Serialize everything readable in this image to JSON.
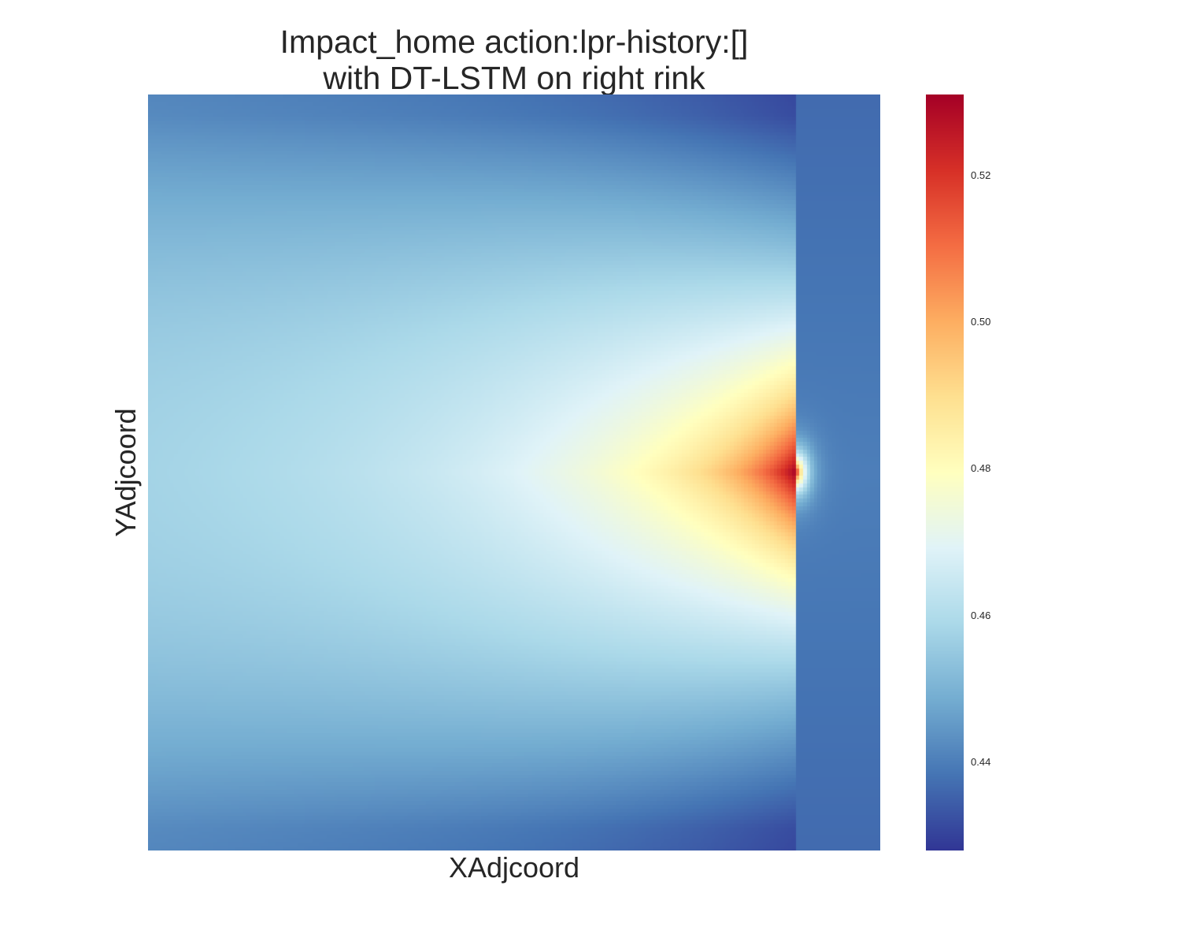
{
  "chart_data": {
    "type": "heatmap",
    "title": [
      "Impact_home action:lpr-history:[]",
      "with DT-LSTM on right rink"
    ],
    "xlabel": "XAdjcoord",
    "ylabel": "YAdjcoord",
    "colormap": "RdYlBu_r",
    "colormap_stops": [
      "#313695",
      "#4575b4",
      "#74add1",
      "#abd9e9",
      "#e0f3f8",
      "#ffffbf",
      "#fee090",
      "#fdae61",
      "#f46d43",
      "#d73027",
      "#a50026"
    ],
    "color_range": [
      0.428,
      0.531
    ],
    "colorbar_ticks": [
      "0.44",
      "0.46",
      "0.48",
      "0.50",
      "0.52"
    ],
    "colorbar_tick_values": [
      0.44,
      0.46,
      0.48,
      0.5,
      0.52
    ],
    "grid": false,
    "x_range": [
      0,
      100
    ],
    "y_range": [
      -42.5,
      42.5
    ],
    "peak": {
      "x": 88.5,
      "y": 0,
      "value": 0.531
    },
    "value_samples": [
      {
        "x": 88.5,
        "y": 0,
        "value": 0.531
      },
      {
        "x": 70,
        "y": 0,
        "value": 0.505
      },
      {
        "x": 40,
        "y": 0,
        "value": 0.482
      },
      {
        "x": 15,
        "y": 0,
        "value": 0.462
      },
      {
        "x": 0,
        "y": 0,
        "value": 0.455
      },
      {
        "x": 95,
        "y": 0,
        "value": 0.44
      },
      {
        "x": 60,
        "y": 30,
        "value": 0.468
      },
      {
        "x": 0,
        "y": 42.5,
        "value": 0.428
      },
      {
        "x": 0,
        "y": -42.5,
        "value": 0.428
      },
      {
        "x": 100,
        "y": 42.5,
        "value": 0.44
      }
    ]
  }
}
